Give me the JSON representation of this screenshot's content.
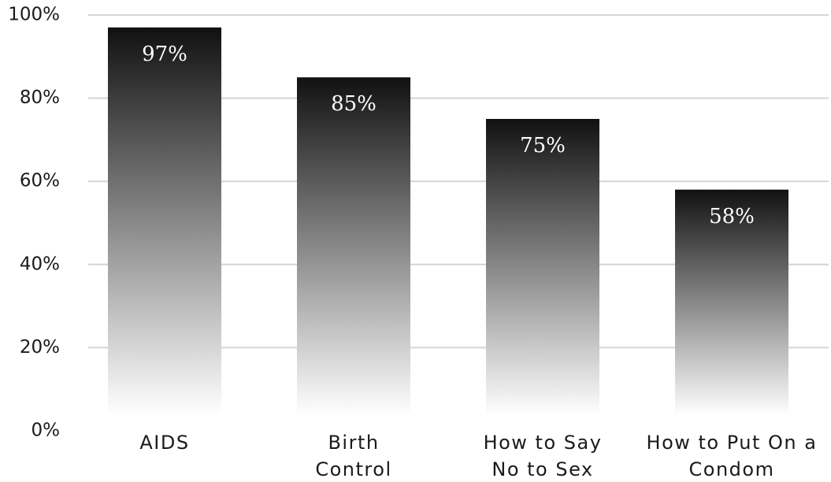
{
  "chart_data": {
    "type": "bar",
    "categories": [
      [
        "AIDS"
      ],
      [
        "Birth",
        "Control"
      ],
      [
        "How to Say",
        "No to Sex"
      ],
      [
        "How to Put On a",
        "Condom"
      ]
    ],
    "values": [
      97,
      85,
      75,
      58
    ],
    "value_labels": [
      "97%",
      "85%",
      "75%",
      "58%"
    ],
    "y_ticks": [
      0,
      20,
      40,
      60,
      80,
      100
    ],
    "y_tick_labels": [
      "0%",
      "20%",
      "40%",
      "60%",
      "80%",
      "100%"
    ],
    "ylim": [
      0,
      100
    ],
    "title": "",
    "xlabel": "",
    "ylabel": "",
    "grid": true,
    "legend": "none",
    "colors": {
      "bar_top": "#111111",
      "bar_bottom": "#ffffff",
      "grid": "#d4d4d4",
      "value_text": "#ffffff",
      "axis_text": "#1a1a1a"
    }
  }
}
